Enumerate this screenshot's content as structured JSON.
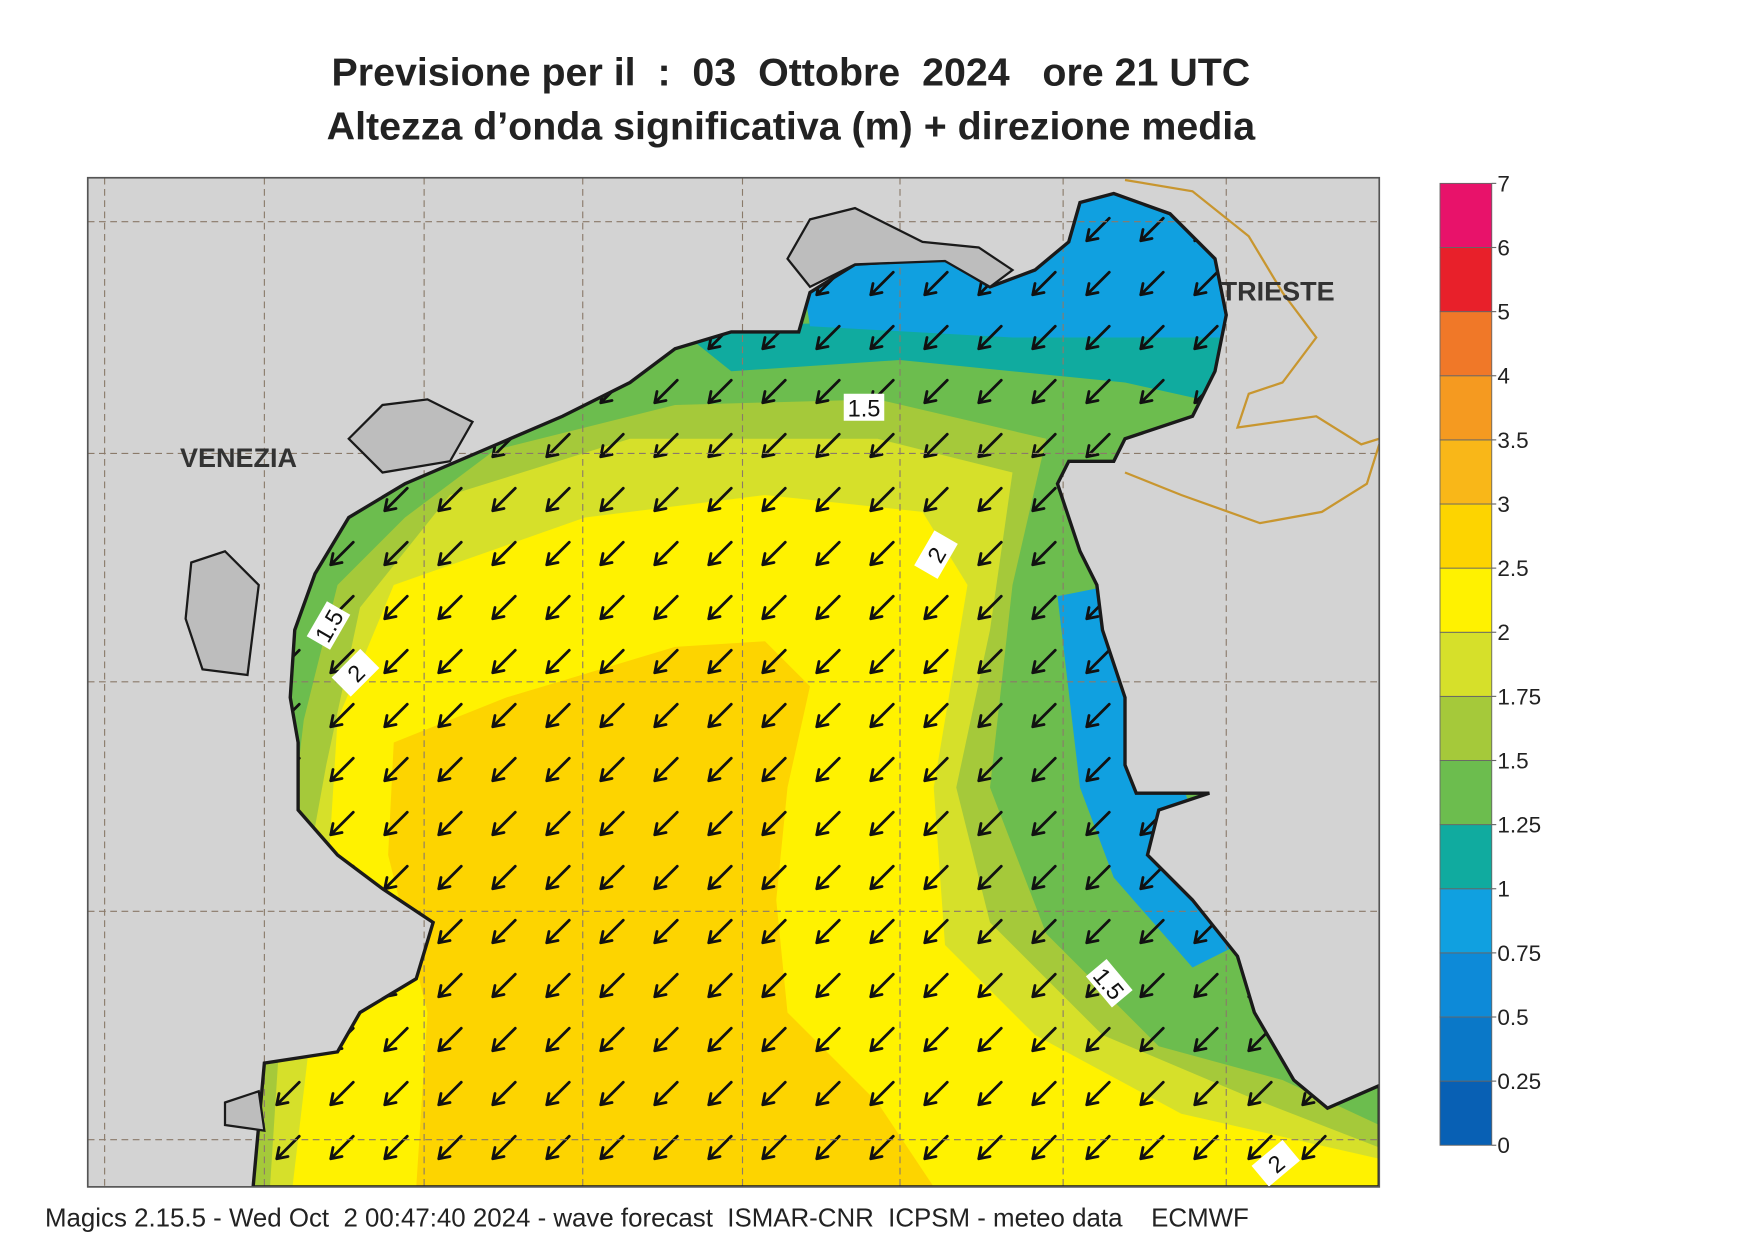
{
  "title": {
    "line1": "Previsione per il  :  03  Ottobre  2024   ore 21 UTC",
    "line2": "Altezza d’onda significativa (m) + direzione media"
  },
  "map": {
    "places": [
      "VENEZIA",
      "TRIESTE"
    ],
    "contour_labels": [
      "1.5",
      "1.5",
      "2",
      "2",
      "1.5",
      "2"
    ]
  },
  "legend": {
    "levels": [
      0,
      0.25,
      0.5,
      0.75,
      1,
      1.25,
      1.5,
      1.75,
      2,
      2.5,
      3,
      3.5,
      4,
      5,
      6,
      7
    ],
    "colors": [
      "#0860b4",
      "#0a78c8",
      "#0d8ad8",
      "#10a0e0",
      "#10ab9f",
      "#6cbd4e",
      "#a5c93a",
      "#d6e02a",
      "#fff200",
      "#fdd400",
      "#f9b718",
      "#f59a20",
      "#f07828",
      "#e8202a",
      "#e8126a"
    ]
  },
  "footer": "Magics 2.15.5 - Wed Oct  2 00:47:40 2024 - wave forecast  ISMAR-CNR  ICPSM - meteo data    ECMWF"
}
